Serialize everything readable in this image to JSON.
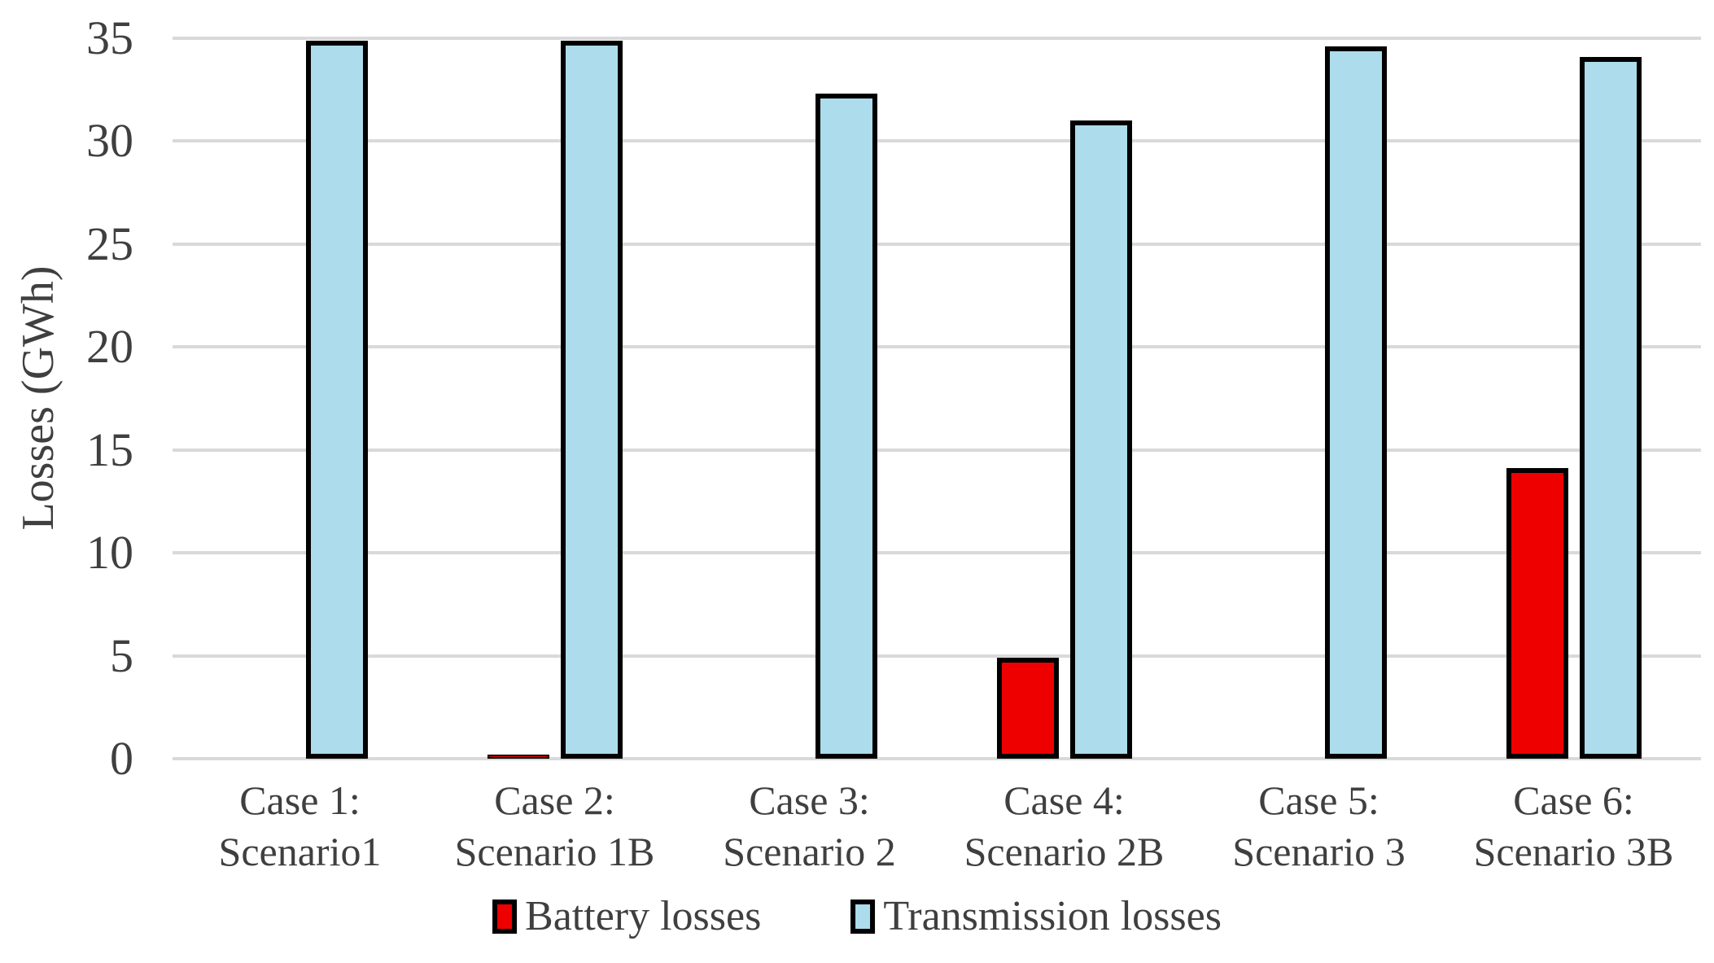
{
  "chart_data": {
    "type": "bar",
    "title": "",
    "xlabel": "",
    "ylabel": "Losses (GWh)",
    "ylim": [
      0,
      35
    ],
    "yticks": [
      0,
      5,
      10,
      15,
      20,
      25,
      30,
      35
    ],
    "grid": "horizontal",
    "legend_position": "bottom",
    "categories": [
      {
        "line1": "Case 1:",
        "line2": "Scenario1"
      },
      {
        "line1": "Case 2:",
        "line2": "Scenario 1B"
      },
      {
        "line1": "Case 3:",
        "line2": "Scenario 2"
      },
      {
        "line1": "Case 4:",
        "line2": "Scenario 2B"
      },
      {
        "line1": "Case 5:",
        "line2": "Scenario 3"
      },
      {
        "line1": "Case 6:",
        "line2": "Scenario 3B"
      }
    ],
    "series": [
      {
        "name": "Battery losses",
        "color": "#EE0000",
        "values": [
          0,
          0.2,
          0,
          4.9,
          0,
          14.1
        ]
      },
      {
        "name": "Transmission losses",
        "color": "#ADDCEC",
        "values": [
          34.9,
          34.9,
          32.3,
          31.0,
          34.6,
          34.1
        ]
      }
    ],
    "bar_border_color": "#000000",
    "gridline_color": "#D9D9D9",
    "text_color": "#3F3F3F"
  }
}
